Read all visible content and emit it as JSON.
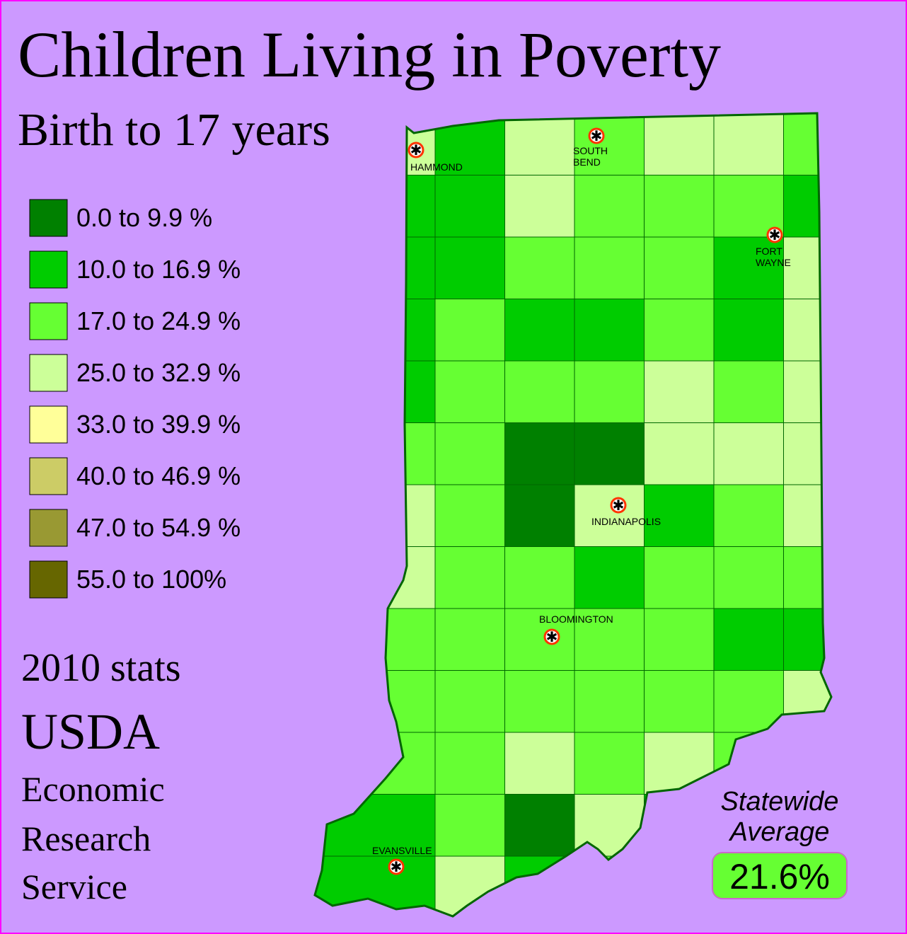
{
  "title": "Children Living in Poverty",
  "subtitle": "Birth to 17 years",
  "legend": [
    {
      "label": "0.0 to 9.9 %",
      "color": "#008000"
    },
    {
      "label": "10.0 to 16.9 %",
      "color": "#00cc00"
    },
    {
      "label": "17.0 to 24.9 %",
      "color": "#66ff33"
    },
    {
      "label": "25.0 to 32.9 %",
      "color": "#ccff99"
    },
    {
      "label": "33.0 to 39.9 %",
      "color": "#ffff99"
    },
    {
      "label": "40.0 to 46.9 %",
      "color": "#cccc66"
    },
    {
      "label": "47.0 to 54.9 %",
      "color": "#999933"
    },
    {
      "label": "55.0 to 100%",
      "color": "#666600"
    }
  ],
  "source": [
    "2010 stats",
    "USDA",
    "Economic",
    "Research",
    "Service"
  ],
  "cities": [
    {
      "lines": [
        "HAMMOND"
      ]
    },
    {
      "lines": [
        "SOUTH",
        "BEND"
      ]
    },
    {
      "lines": [
        "FORT",
        "WAYNE"
      ]
    },
    {
      "lines": [
        "INDIANAPOLIS"
      ]
    },
    {
      "lines": [
        "BLOOMINGTON"
      ]
    },
    {
      "lines": [
        "EVANSVILLE"
      ]
    }
  ],
  "statewide_average": {
    "lines": [
      "Statewide",
      "Average"
    ],
    "value": "21.6%"
  }
}
